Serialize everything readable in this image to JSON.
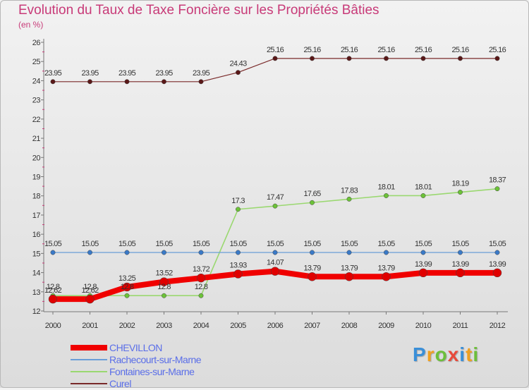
{
  "title": "Evolution du Taux de Taxe Foncière sur les Propriétés Bâties",
  "subtitle": "(en %)",
  "logo": {
    "letters": [
      {
        "ch": "P",
        "color": "#3a8fd8"
      },
      {
        "ch": "r",
        "color": "#f0a020"
      },
      {
        "ch": "o",
        "color": "#6cbf3a"
      },
      {
        "ch": "x",
        "color": "#e84a3a"
      },
      {
        "ch": "i",
        "color": "#3a8fd8"
      },
      {
        "ch": "t",
        "color": "#f0a020"
      },
      {
        "ch": "i",
        "color": "#6cbf3a"
      }
    ]
  },
  "chart_data": {
    "type": "line",
    "x": [
      "2000",
      "2001",
      "2002",
      "2003",
      "2004",
      "2005",
      "2006",
      "2007",
      "2008",
      "2009",
      "2010",
      "2011",
      "2012"
    ],
    "ylim": [
      12,
      26
    ],
    "yticks": [
      "12",
      "13",
      "14",
      "15",
      "16",
      "17",
      "18",
      "19",
      "20",
      "21",
      "22",
      "23",
      "24",
      "25",
      "26"
    ],
    "grid": false,
    "legend_position": "bottom-left",
    "series": [
      {
        "name": "Curel",
        "color": "#7a2a2a",
        "marker": "#5a1818",
        "width": 1.2,
        "values": [
          23.95,
          23.95,
          23.95,
          23.95,
          23.95,
          24.43,
          25.16,
          25.16,
          25.16,
          25.16,
          25.16,
          25.16,
          25.16
        ],
        "labels": [
          "23.95",
          "23.95",
          "23.95",
          "23.95",
          "23.95",
          "24.43",
          "25.16",
          "25.16",
          "25.16",
          "25.16",
          "25.16",
          "25.16",
          "25.16"
        ]
      },
      {
        "name": "Fontaines-sur-Marne",
        "color": "#9ad870",
        "marker": "#6cc238",
        "width": 1.6,
        "values": [
          12.8,
          12.8,
          12.8,
          12.8,
          12.8,
          17.3,
          17.47,
          17.65,
          17.83,
          18.01,
          18.01,
          18.19,
          18.37
        ],
        "labels": [
          "12.8",
          "12.8",
          "12.8",
          "12.8",
          "12.8",
          "17.3",
          "17.47",
          "17.65",
          "17.83",
          "18.01",
          "18.01",
          "18.19",
          "18.37"
        ]
      },
      {
        "name": "Rachecourt-sur-Marne",
        "color": "#6a9ed8",
        "marker": "#3a7ac8",
        "width": 1.2,
        "values": [
          15.05,
          15.05,
          15.05,
          15.05,
          15.05,
          15.05,
          15.05,
          15.05,
          15.05,
          15.05,
          15.05,
          15.05,
          15.05
        ],
        "labels": [
          "15.05",
          "15.05",
          "15.05",
          "15.05",
          "15.05",
          "15.05",
          "15.05",
          "15.05",
          "15.05",
          "15.05",
          "15.05",
          "15.05",
          "15.05"
        ]
      },
      {
        "name": "CHEVILLON",
        "color": "#f00000",
        "marker": "#e00000",
        "width": 8,
        "values": [
          12.62,
          12.62,
          13.25,
          13.52,
          13.72,
          13.93,
          14.07,
          13.79,
          13.79,
          13.79,
          13.99,
          13.99,
          13.99
        ],
        "labels": [
          "12.62",
          "12.62",
          "13.25",
          "13.52",
          "13.72",
          "13.93",
          "14.07",
          "13.79",
          "13.79",
          "13.79",
          "13.99",
          "13.99",
          "13.99"
        ]
      }
    ],
    "legend": [
      "CHEVILLON",
      "Rachecourt-sur-Marne",
      "Fontaines-sur-Marne",
      "Curel"
    ]
  }
}
